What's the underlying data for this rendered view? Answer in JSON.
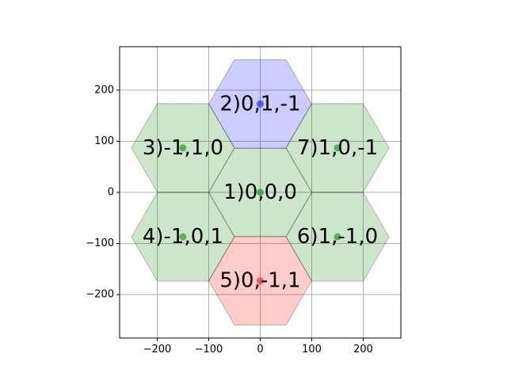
{
  "chart_data": {
    "type": "scatter",
    "title": "",
    "xlabel": "",
    "ylabel": "",
    "xlim": [
      -273,
      273
    ],
    "ylim": [
      -285,
      285
    ],
    "grid": true,
    "x_ticks": [
      -200,
      -100,
      0,
      100,
      200
    ],
    "y_ticks": [
      -200,
      -100,
      0,
      100,
      200
    ],
    "x_tick_labels": [
      "−200",
      "−100",
      "0",
      "100",
      "200"
    ],
    "y_tick_labels": [
      "−200",
      "−100",
      "0",
      "100",
      "200"
    ],
    "hex_radius": 100,
    "hexagons": [
      {
        "label": "1)0,0,0",
        "x": 0,
        "y": 0,
        "fill": "#008000",
        "point_color": "#008000"
      },
      {
        "label": "2)0,1,-1",
        "x": 0,
        "y": 173,
        "fill": "#0000ff",
        "point_color": "#0000ff"
      },
      {
        "label": "3)-1,1,0",
        "x": -150,
        "y": 87,
        "fill": "#008000",
        "point_color": "#008000"
      },
      {
        "label": "4)-1,0,1",
        "x": -150,
        "y": -87,
        "fill": "#008000",
        "point_color": "#008000"
      },
      {
        "label": "5)0,-1,1",
        "x": 0,
        "y": -173,
        "fill": "#ff0000",
        "point_color": "#ff0000"
      },
      {
        "label": "6)1,-1,0",
        "x": 150,
        "y": -87,
        "fill": "#008000",
        "point_color": "#008000"
      },
      {
        "label": "7)1,0,-1",
        "x": 150,
        "y": 87,
        "fill": "#008000",
        "point_color": "#008000"
      }
    ]
  }
}
